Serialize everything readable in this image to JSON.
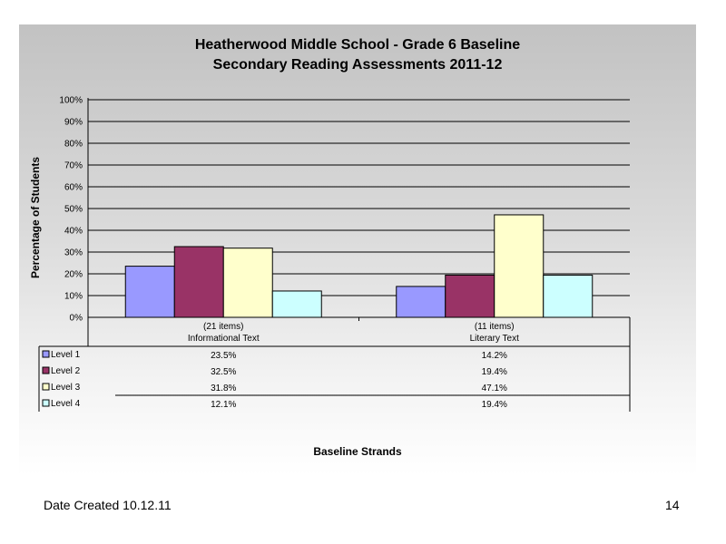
{
  "chart_data": {
    "type": "bar",
    "title": "Heatherwood Middle School - Grade 6 Baseline",
    "subtitle": "Secondary Reading Assessments 2011-12",
    "ylabel": "Percentage of Students",
    "xlabel": "Baseline Strands",
    "ylim": [
      0,
      100
    ],
    "yticks": [
      "0%",
      "10%",
      "20%",
      "30%",
      "40%",
      "50%",
      "60%",
      "70%",
      "80%",
      "90%",
      "100%"
    ],
    "categories": [
      {
        "line1": "(21 items)",
        "line2": "Informational Text"
      },
      {
        "line1": "(11 items)",
        "line2": "Literary Text"
      }
    ],
    "series": [
      {
        "name": "Level 1",
        "color": "#9999ff",
        "values": [
          23.5,
          14.2
        ],
        "labels": [
          "23.5%",
          "14.2%"
        ]
      },
      {
        "name": "Level 2",
        "color": "#993366",
        "values": [
          32.5,
          19.4
        ],
        "labels": [
          "32.5%",
          "19.4%"
        ]
      },
      {
        "name": "Level 3",
        "color": "#ffffcc",
        "values": [
          31.8,
          47.1
        ],
        "labels": [
          "31.8%",
          "47.1%"
        ]
      },
      {
        "name": "Level 4",
        "color": "#ccffff",
        "values": [
          12.1,
          19.4
        ],
        "labels": [
          "12.1%",
          "19.4%"
        ]
      }
    ],
    "grid": true,
    "legend": "data-table"
  },
  "footer": {
    "date_created": "Date Created  10.12.11",
    "page_number": "14"
  }
}
